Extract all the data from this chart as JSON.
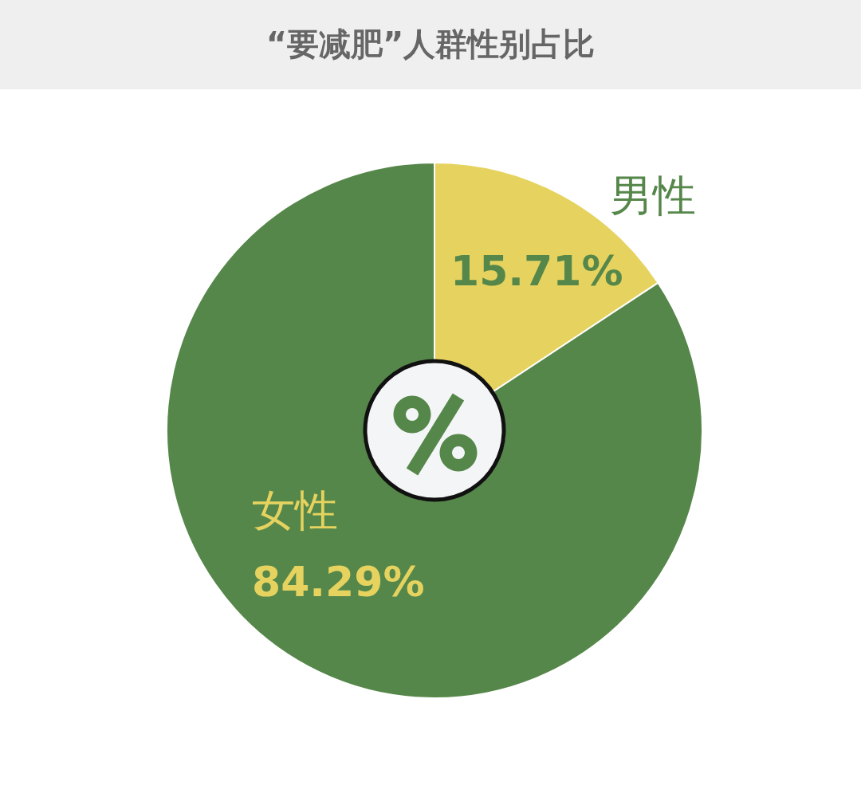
{
  "chart_data": {
    "type": "donut",
    "title": "“要减肥”人群性别占比",
    "categories": [
      "男性",
      "女性"
    ],
    "values": [
      15.71,
      84.29
    ],
    "colors": [
      "#e6d35f",
      "#56874a"
    ],
    "value_labels": [
      "15.71%",
      "84.29%"
    ]
  }
}
